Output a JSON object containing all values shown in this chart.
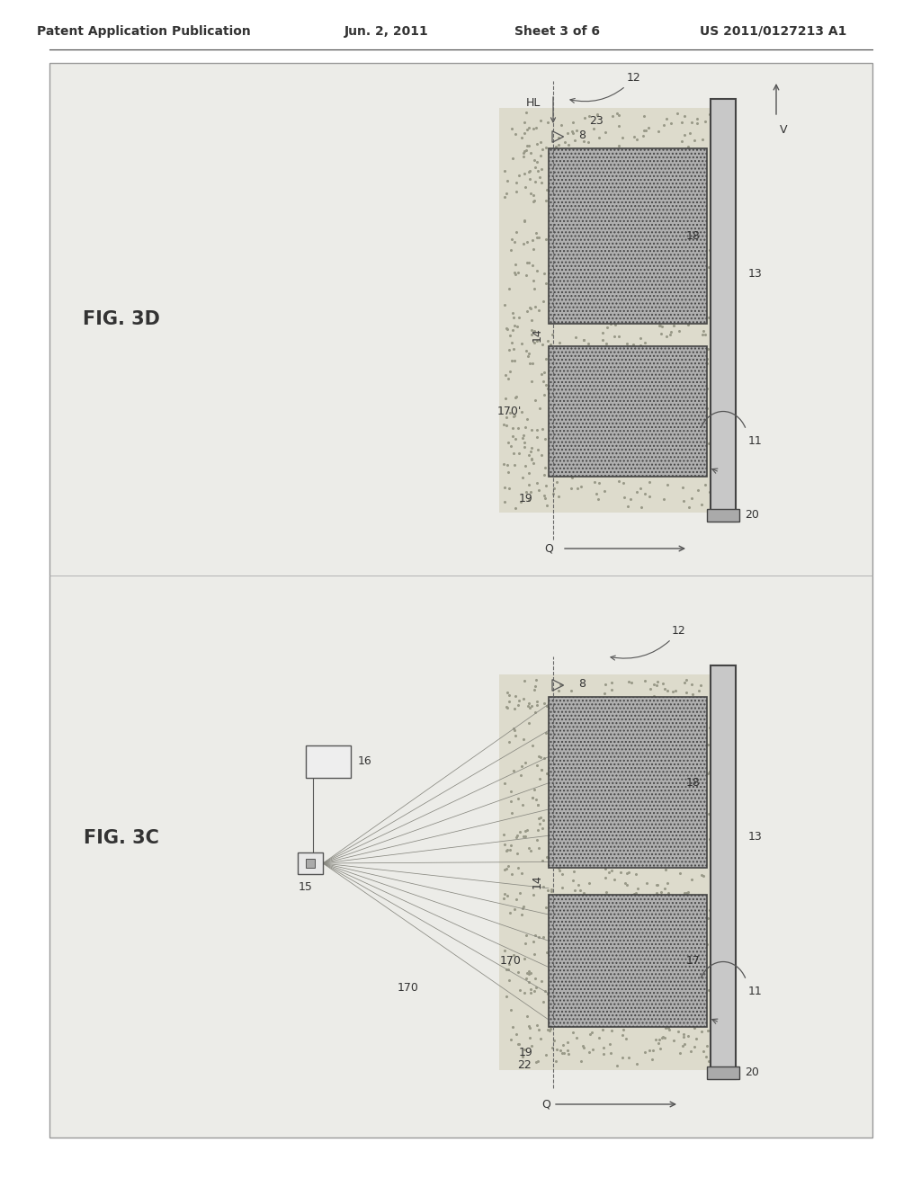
{
  "page_bg": "#f0eeea",
  "inner_bg": "#ececE8",
  "header_text": "Patent Application Publication",
  "header_date": "Jun. 2, 2011",
  "header_sheet": "Sheet 3 of 6",
  "header_patent": "US 2011/0127213 A1",
  "fig3d_label": "FIG. 3D",
  "fig3c_label": "FIG. 3C",
  "text_color": "#333333",
  "line_color": "#555555",
  "panel_fc": "#c8c8c8",
  "block_fc": "#b0b0b0",
  "sandy_fc": "#ccc8aa",
  "white": "#ffffff"
}
